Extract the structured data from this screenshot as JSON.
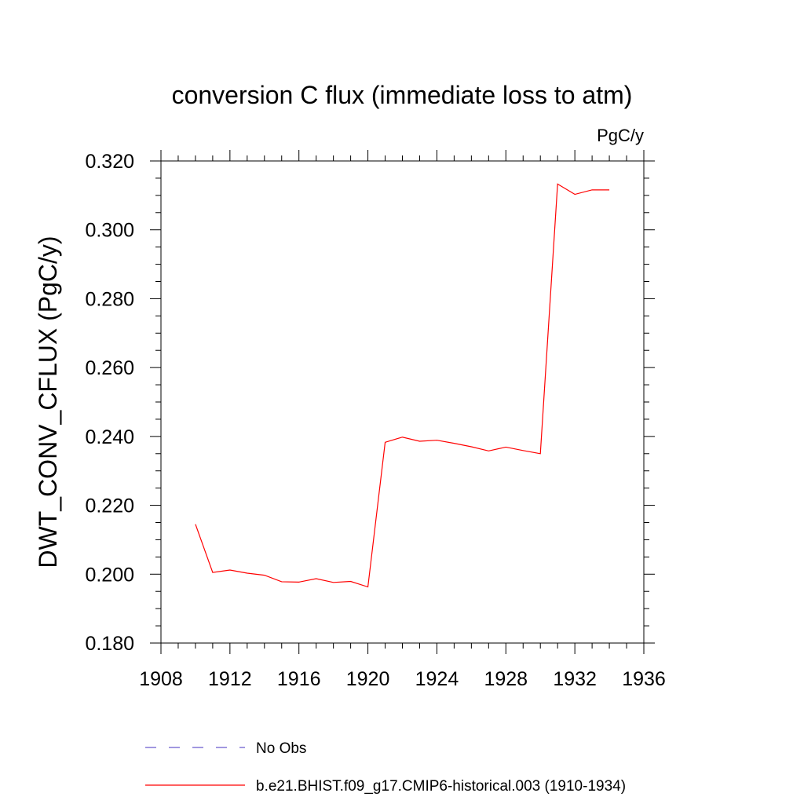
{
  "chart_data": {
    "type": "line",
    "title": "conversion C flux (immediate loss to atm)",
    "units_label": "PgC/y",
    "xlabel": "",
    "ylabel": "DWT_CONV_CFLUX  (PgC/y)",
    "xlim": [
      1908,
      1936
    ],
    "ylim": [
      0.18,
      0.32
    ],
    "x_ticks": [
      "1908",
      "1912",
      "1916",
      "1920",
      "1924",
      "1928",
      "1932",
      "1936"
    ],
    "y_ticks": [
      "0.180",
      "0.200",
      "0.220",
      "0.240",
      "0.260",
      "0.280",
      "0.300",
      "0.320"
    ],
    "grid": false,
    "legend_placement": "bottom",
    "series": [
      {
        "name": "No Obs",
        "color": "#6a5acd",
        "dash": "dashed",
        "x": [],
        "y": []
      },
      {
        "name": "b.e21.BHIST.f09_g17.CMIP6-historical.003 (1910-1934)",
        "color": "#ff0000",
        "dash": "solid",
        "x": [
          1910,
          1911,
          1912,
          1913,
          1914,
          1915,
          1916,
          1917,
          1918,
          1919,
          1920,
          1921,
          1922,
          1923,
          1924,
          1925,
          1926,
          1927,
          1928,
          1929,
          1930,
          1931,
          1932,
          1933,
          1934
        ],
        "y": [
          0.2145,
          0.2005,
          0.2012,
          0.2003,
          0.1997,
          0.1978,
          0.1977,
          0.1987,
          0.1976,
          0.1979,
          0.1963,
          0.2383,
          0.2398,
          0.2386,
          0.2389,
          0.238,
          0.237,
          0.2358,
          0.2369,
          0.2359,
          0.235,
          0.3133,
          0.3103,
          0.3116,
          0.3116
        ]
      }
    ]
  }
}
